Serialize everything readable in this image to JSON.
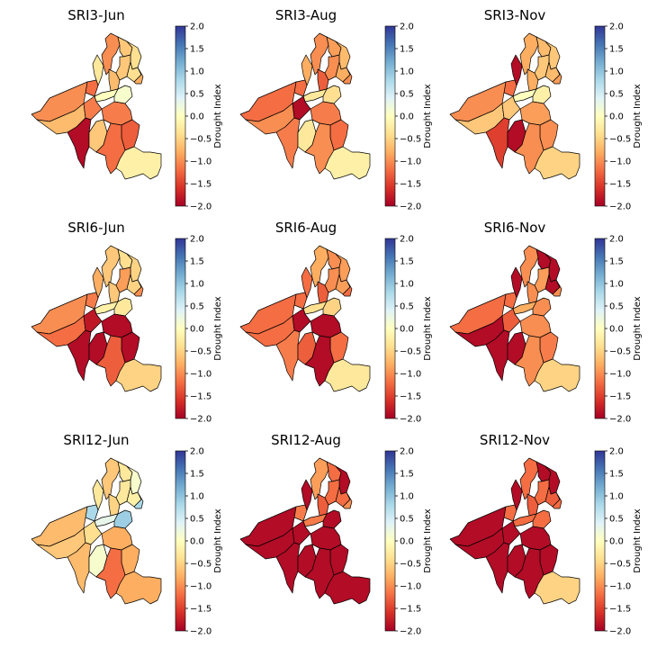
{
  "figure": {
    "colormap": "RdYlBu",
    "colormap_stops": [
      "#a50026",
      "#d73027",
      "#f46d43",
      "#fdae61",
      "#fee090",
      "#ffffbf",
      "#e0f3f8",
      "#abd9e9",
      "#74add1",
      "#4575b4",
      "#313695"
    ],
    "boundary_color": "#000000",
    "colorbar_label": "Drought Index",
    "colorbar_ticks": [
      "2.0",
      "1.5",
      "1.0",
      "0.5",
      "0.0",
      "−0.5",
      "−1.0",
      "−1.5",
      "−2.0"
    ]
  },
  "chart_data": [
    {
      "type": "choropleth map",
      "title": "SRI3-Jun",
      "value_range": [
        -2.0,
        2.0
      ],
      "region_values": [
        -1.0,
        -0.6,
        -0.4,
        -0.3,
        -0.7,
        -0.6,
        -0.4,
        0.0,
        -0.8,
        -1.2,
        0.1,
        -1.0,
        -0.7,
        -1.1,
        -1.9,
        -0.6,
        -1.1,
        -1.3,
        -1.2,
        -0.2
      ]
    },
    {
      "type": "choropleth map",
      "title": "SRI3-Aug",
      "value_range": [
        -2.0,
        2.0
      ],
      "region_values": [
        -1.0,
        -0.9,
        -0.7,
        -0.8,
        -1.3,
        -1.0,
        -0.8,
        -0.3,
        -1.0,
        -1.2,
        -0.4,
        -1.2,
        -1.0,
        -1.9,
        -1.1,
        -0.3,
        -1.1,
        -1.2,
        -1.0,
        -0.2
      ]
    },
    {
      "type": "choropleth map",
      "title": "SRI3-Nov",
      "value_range": [
        -2.0,
        2.0
      ],
      "region_values": [
        -0.8,
        -0.7,
        -0.6,
        -1.9,
        -0.8,
        -0.6,
        -0.7,
        0.0,
        -0.9,
        -1.2,
        -0.2,
        -1.0,
        -0.6,
        -0.6,
        -1.5,
        -1.9,
        -0.9,
        -1.0,
        -1.0,
        -0.5
      ]
    },
    {
      "type": "choropleth map",
      "title": "SRI6-Jun",
      "value_range": [
        -2.0,
        2.0
      ],
      "region_values": [
        -0.6,
        -0.4,
        -0.5,
        -0.8,
        -0.6,
        -0.9,
        -0.5,
        -0.2,
        -1.0,
        -1.1,
        -0.3,
        -1.0,
        -1.2,
        -1.8,
        -1.9,
        -1.9,
        -1.9,
        -1.9,
        -1.3,
        -0.5
      ]
    },
    {
      "type": "choropleth map",
      "title": "SRI6-Aug",
      "value_range": [
        -2.0,
        2.0
      ],
      "region_values": [
        -0.8,
        -1.0,
        -0.9,
        -1.2,
        -1.3,
        -1.0,
        -0.9,
        -0.4,
        -1.2,
        -1.2,
        -0.5,
        -1.2,
        -1.2,
        -1.9,
        -1.1,
        -1.3,
        -1.9,
        -1.2,
        -1.9,
        -0.3
      ]
    },
    {
      "type": "choropleth map",
      "title": "SRI6-Nov",
      "value_range": [
        -2.0,
        2.0
      ],
      "region_values": [
        -1.0,
        -1.9,
        -1.9,
        -1.9,
        -1.0,
        -0.9,
        -1.9,
        -0.8,
        -1.0,
        -1.2,
        -1.0,
        -1.2,
        -1.9,
        -1.3,
        -1.9,
        -1.9,
        -1.0,
        -1.1,
        -1.0,
        -0.5
      ]
    },
    {
      "type": "choropleth map",
      "title": "SRI12-Jun",
      "value_range": [
        -2.0,
        2.0
      ],
      "region_values": [
        -0.6,
        -0.3,
        0.1,
        -0.3,
        -0.5,
        -0.3,
        -0.2,
        0.3,
        0.8,
        0.8,
        0.9,
        -0.7,
        -0.6,
        -0.4,
        -0.7,
        0.1,
        -0.8,
        -0.8,
        -1.2,
        -0.8
      ]
    },
    {
      "type": "choropleth map",
      "title": "SRI12-Aug",
      "value_range": [
        -2.0,
        2.0
      ],
      "region_values": [
        -0.9,
        -1.2,
        -1.9,
        -1.9,
        -1.3,
        -1.2,
        -1.2,
        -1.1,
        -1.0,
        -1.1,
        -1.9,
        -1.9,
        -1.9,
        -1.9,
        -1.9,
        -1.9,
        -1.9,
        -1.9,
        -1.9,
        -1.9
      ]
    },
    {
      "type": "choropleth map",
      "title": "SRI12-Nov",
      "value_range": [
        -2.0,
        2.0
      ],
      "region_values": [
        -1.2,
        -1.9,
        -1.9,
        -1.9,
        -1.3,
        -1.2,
        -1.3,
        -1.2,
        -1.2,
        -1.2,
        -1.2,
        -1.9,
        -1.9,
        -1.9,
        -1.9,
        -1.9,
        -1.9,
        -1.9,
        -1.9,
        -0.5
      ]
    }
  ]
}
